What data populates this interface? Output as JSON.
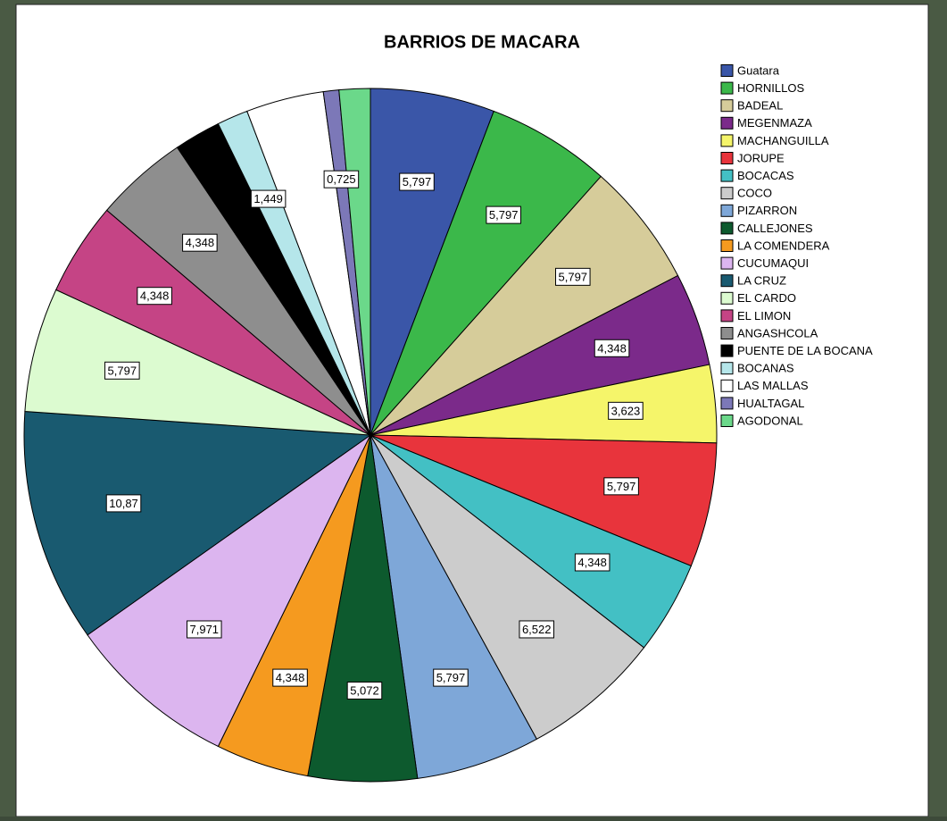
{
  "chart_data": {
    "type": "pie",
    "title": "BARRIOS DE MACARA",
    "categories": [
      "Guatara",
      "HORNILLOS",
      "BADEAL",
      "MEGENMAZA",
      "MACHANGUILLA",
      "JORUPE",
      "BOCACAS",
      "COCO",
      "PIZARRON",
      "CALLEJONES",
      "LA COMENDERA",
      "CUCUMAQUI",
      "LA CRUZ",
      "EL CARDO",
      "EL LIMON",
      "ANGASHCOLA",
      "PUENTE DE LA BOCANA",
      "BOCANAS",
      "LAS MALLAS",
      "HUALTAGAL",
      "AGODONAL"
    ],
    "values": [
      5.797,
      5.797,
      5.797,
      4.348,
      3.623,
      5.797,
      4.348,
      6.522,
      5.797,
      5.072,
      4.348,
      7.971,
      10.87,
      5.797,
      4.348,
      4.348,
      2.174,
      1.449,
      3.623,
      0.725,
      1.449
    ],
    "value_labels": [
      "5,797",
      "5,797",
      "5,797",
      "4,348",
      "3,623",
      "5,797",
      "4,348",
      "6,522",
      "5,797",
      "5,072",
      "4,348",
      "7,971",
      "10,87",
      "5,797",
      "4,348",
      "4,348",
      null,
      "1,449",
      null,
      "0,725",
      null
    ],
    "colors": [
      "#3a56a8",
      "#3bb84a",
      "#d6cc9a",
      "#7b2a8a",
      "#f5f56a",
      "#e8343c",
      "#43c0c4",
      "#cccccc",
      "#7ea7d8",
      "#0d5a2e",
      "#f59a1f",
      "#dcb5ef",
      "#195a70",
      "#dcfbd0",
      "#c54485",
      "#8e8e8e",
      "#000000",
      "#b5e6ea",
      "#ffffff",
      "#7c78b8",
      "#6bd88a"
    ]
  }
}
